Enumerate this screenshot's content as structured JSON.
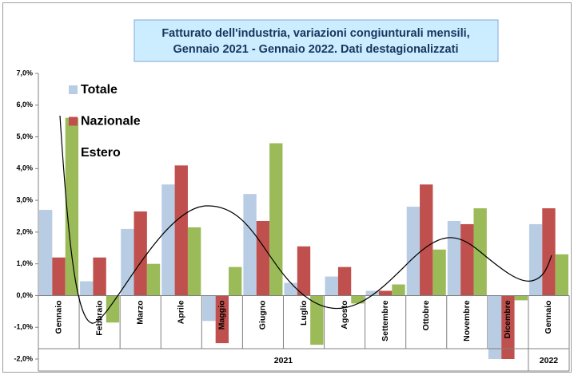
{
  "chart_data": {
    "type": "bar",
    "title_lines": [
      "Fatturato dell'industria, variazioni congiunturali mensili,",
      "Gennaio 2021 - Gennaio 2022. Dati destagionalizzati"
    ],
    "groups": [
      {
        "label": "2021",
        "categories": [
          "Gennaio",
          "Febbraio",
          "Marzo",
          "Aprile",
          "Maggio",
          "Giugno",
          "Luglio",
          "Agosto",
          "Settembre",
          "Ottobre",
          "Novembre",
          "Dicembre"
        ]
      },
      {
        "label": "2022",
        "categories": [
          "Gennaio"
        ]
      }
    ],
    "series": [
      {
        "name": "Totale",
        "color": "#b8cce4",
        "values": [
          2.7,
          0.45,
          2.1,
          3.5,
          -0.8,
          3.2,
          0.4,
          0.6,
          0.15,
          2.8,
          2.35,
          -2.0,
          2.25
        ]
      },
      {
        "name": "Nazionale",
        "color": "#c0504d",
        "values": [
          1.2,
          1.2,
          2.65,
          4.1,
          -1.5,
          2.35,
          1.55,
          0.9,
          0.15,
          3.5,
          2.25,
          -2.0,
          2.75
        ]
      },
      {
        "name": "Estero",
        "color": "#9bbb59",
        "values": [
          5.6,
          -0.85,
          1.0,
          2.15,
          0.9,
          4.8,
          -1.55,
          -0.25,
          0.35,
          1.45,
          2.75,
          -0.15,
          1.3
        ]
      }
    ],
    "ylim": [
      -2,
      7
    ],
    "yticks": [
      {
        "value": -2,
        "label": "-2,0%"
      },
      {
        "value": -1,
        "label": "-1,0%"
      },
      {
        "value": 0,
        "label": "0,0%"
      },
      {
        "value": 1,
        "label": "1,0%"
      },
      {
        "value": 2,
        "label": "2,0%"
      },
      {
        "value": 3,
        "label": "3,0%"
      },
      {
        "value": 4,
        "label": "4,0%"
      },
      {
        "value": 5,
        "label": "5,0%"
      },
      {
        "value": 6,
        "label": "6,0%"
      },
      {
        "value": 7,
        "label": "7,0%"
      }
    ],
    "grid": false,
    "legend": "upper left"
  }
}
